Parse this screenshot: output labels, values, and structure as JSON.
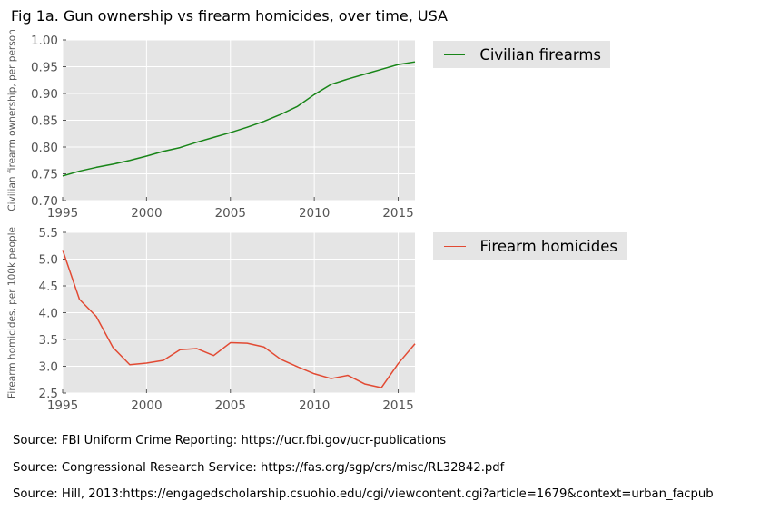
{
  "title": "Fig 1a. Gun ownership vs firearm homicides, over time, USA",
  "colors": {
    "plot_bg": "#e5e5e5",
    "grid": "#ffffff",
    "axis_text": "#555555",
    "series_top": "#188518",
    "series_bottom": "#e24a33"
  },
  "chart_data": [
    {
      "type": "line",
      "ylabel": "Civilian firearm ownership, per person",
      "xlim": [
        1995,
        2016
      ],
      "ylim": [
        0.7,
        1.0
      ],
      "xticks": [
        1995,
        2000,
        2005,
        2010,
        2015
      ],
      "xtick_labels": [
        "1995",
        "2000",
        "2005",
        "2010",
        "2015"
      ],
      "yticks": [
        0.7,
        0.75,
        0.8,
        0.85,
        0.9,
        0.95,
        1.0
      ],
      "ytick_labels": [
        "0.70",
        "0.75",
        "0.80",
        "0.85",
        "0.90",
        "0.95",
        "1.00"
      ],
      "grid": true,
      "legend_position": "outside-right-top",
      "series": [
        {
          "name": "Civilian firearms",
          "color": "#188518",
          "x": [
            1995,
            1996,
            1997,
            1998,
            1999,
            2000,
            2001,
            2002,
            2003,
            2004,
            2005,
            2006,
            2007,
            2008,
            2009,
            2010,
            2011,
            2012,
            2013,
            2014,
            2015,
            2016
          ],
          "y": [
            0.746,
            0.755,
            0.762,
            0.768,
            0.775,
            0.783,
            0.792,
            0.799,
            0.809,
            0.818,
            0.827,
            0.837,
            0.848,
            0.861,
            0.876,
            0.898,
            0.917,
            0.927,
            0.936,
            0.945,
            0.954,
            0.959
          ]
        }
      ]
    },
    {
      "type": "line",
      "ylabel": "Firearm homicides, per 100k people",
      "xlim": [
        1995,
        2016
      ],
      "ylim": [
        2.5,
        5.5
      ],
      "xticks": [
        1995,
        2000,
        2005,
        2010,
        2015
      ],
      "xtick_labels": [
        "1995",
        "2000",
        "2005",
        "2010",
        "2015"
      ],
      "yticks": [
        2.5,
        3.0,
        3.5,
        4.0,
        4.5,
        5.0,
        5.5
      ],
      "ytick_labels": [
        "2.5",
        "3.0",
        "3.5",
        "4.0",
        "4.5",
        "5.0",
        "5.5"
      ],
      "grid": true,
      "legend_position": "outside-right-top",
      "series": [
        {
          "name": "Firearm homicides",
          "color": "#e24a33",
          "x": [
            1995,
            1996,
            1997,
            1998,
            1999,
            2000,
            2001,
            2002,
            2003,
            2004,
            2005,
            2006,
            2007,
            2008,
            2009,
            2010,
            2011,
            2012,
            2013,
            2014,
            2015,
            2016
          ],
          "y": [
            5.17,
            4.25,
            3.93,
            3.35,
            3.03,
            3.06,
            3.11,
            3.31,
            3.33,
            3.2,
            3.44,
            3.43,
            3.36,
            3.13,
            2.99,
            2.86,
            2.77,
            2.83,
            2.67,
            2.6,
            3.05,
            3.42
          ]
        }
      ]
    }
  ],
  "sources": [
    "Source: FBI Uniform Crime Reporting: https://ucr.fbi.gov/ucr-publications",
    "Source: Congressional Research Service: https://fas.org/sgp/crs/misc/RL32842.pdf",
    "Source: Hill, 2013:https://engagedscholarship.csuohio.edu/cgi/viewcontent.cgi?article=1679&context=urban_facpub"
  ]
}
